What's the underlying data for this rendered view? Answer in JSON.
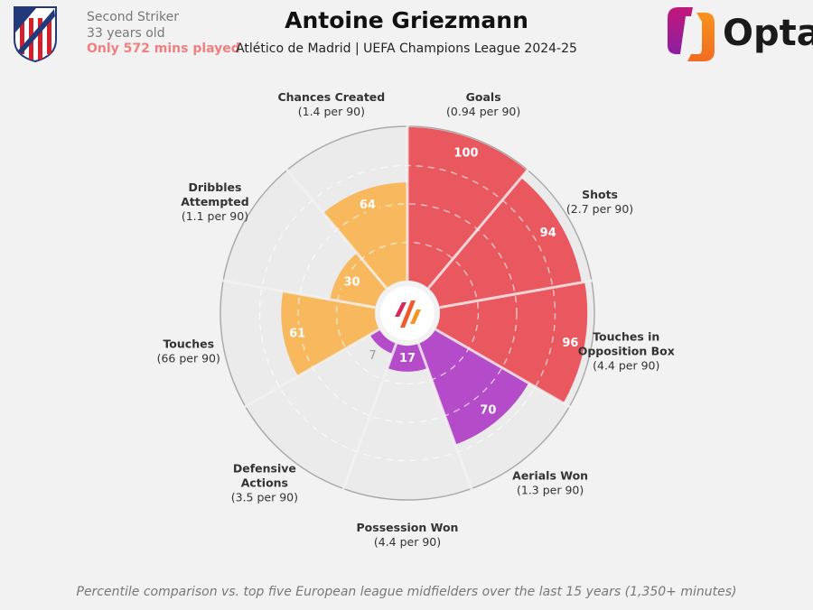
{
  "header": {
    "player_name": "Antoine Griezmann",
    "subtitle": "Atlético de Madrid | UEFA Champions League 2024-25",
    "position": "Second Striker",
    "age": "33 years old",
    "minutes_warning": "Only 572 mins played",
    "brand": "Opta",
    "club_crest": "Atlético de Madrid crest"
  },
  "footer": "Percentile comparison vs. top five European league midfielders over the last 15 years (1,350+ minutes)",
  "colors": {
    "attacking": "#e9585f",
    "possession": "#b44bc9",
    "creation": "#f7b85e",
    "background_slice": "#ebebeb"
  },
  "chart_data": {
    "type": "polar-bar",
    "scale": [
      0,
      100
    ],
    "rings": [
      25,
      50,
      75,
      100
    ],
    "categories": [
      {
        "label": "Goals",
        "per90": "(0.94 per 90)",
        "value": 100,
        "group": "attacking"
      },
      {
        "label": "Shots",
        "per90": "(2.7 per 90)",
        "value": 94,
        "group": "attacking"
      },
      {
        "label": "Touches in Opposition Box",
        "per90": "(4.4 per 90)",
        "value": 96,
        "group": "attacking"
      },
      {
        "label": "Aerials Won",
        "per90": "(1.3 per 90)",
        "value": 70,
        "group": "possession"
      },
      {
        "label": "Possession Won",
        "per90": "(4.4 per 90)",
        "value": 17,
        "group": "possession"
      },
      {
        "label": "Defensive Actions",
        "per90": "(3.5 per 90)",
        "value": 7,
        "group": "possession"
      },
      {
        "label": "Touches",
        "per90": "(66 per 90)",
        "value": 61,
        "group": "creation"
      },
      {
        "label": "Dribbles Attempted",
        "per90": "(1.1 per 90)",
        "value": 30,
        "group": "creation"
      },
      {
        "label": "Chances Created",
        "per90": "(1.4 per 90)",
        "value": 64,
        "group": "creation"
      }
    ]
  }
}
